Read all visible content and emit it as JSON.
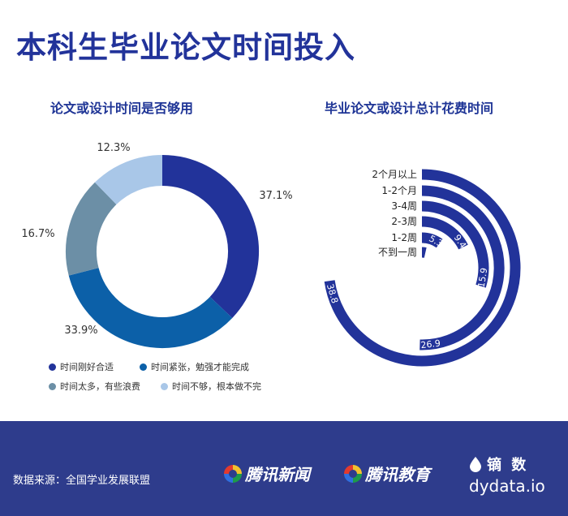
{
  "title": "本科生毕业论文时间投入",
  "chart_data": [
    {
      "type": "pie",
      "title": "论文或设计时间是否够用",
      "categories": [
        "时间刚好合适",
        "时间紧张，勉强才能完成",
        "时间太多，有些浪费",
        "时间不够，根本做不完"
      ],
      "values": [
        37.1,
        33.9,
        16.7,
        12.3
      ],
      "labels": [
        "37.1%",
        "33.9%",
        "16.7%",
        "12.3%"
      ],
      "colors": [
        "#22339a",
        "#0c60a8",
        "#6c8fa6",
        "#a9c7e8"
      ]
    },
    {
      "type": "bar",
      "style": "radial",
      "title": "毕业论文或设计总计花费时间",
      "categories": [
        "2个月以上",
        "1-2个月",
        "3-4周",
        "2-3周",
        "1-2周",
        "不到一周"
      ],
      "values": [
        38.8,
        26.9,
        15.9,
        9.4,
        5.3,
        1.9
      ],
      "value_labels": [
        "38.8",
        "26.9",
        "15.9",
        "9.4",
        "5.3",
        ""
      ],
      "color": "#22339a"
    }
  ],
  "footer": {
    "source": "数据来源：全国学业发展联盟",
    "logo1": "腾讯新闻",
    "logo2": "腾讯教育",
    "brand": "镝 数",
    "url": "dydata.io"
  }
}
